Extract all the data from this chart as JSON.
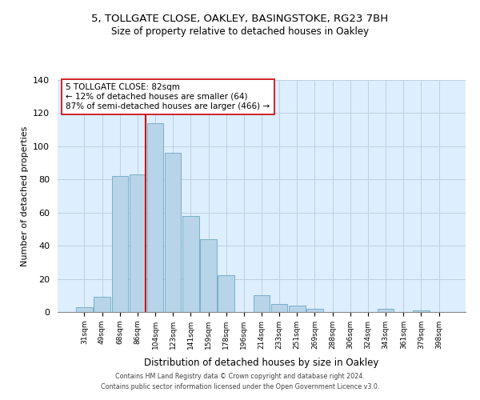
{
  "title1": "5, TOLLGATE CLOSE, OAKLEY, BASINGSTOKE, RG23 7BH",
  "title2": "Size of property relative to detached houses in Oakley",
  "xlabel": "Distribution of detached houses by size in Oakley",
  "ylabel": "Number of detached properties",
  "bar_labels": [
    "31sqm",
    "49sqm",
    "68sqm",
    "86sqm",
    "104sqm",
    "123sqm",
    "141sqm",
    "159sqm",
    "178sqm",
    "196sqm",
    "214sqm",
    "233sqm",
    "251sqm",
    "269sqm",
    "288sqm",
    "306sqm",
    "324sqm",
    "343sqm",
    "361sqm",
    "379sqm",
    "398sqm"
  ],
  "bar_values": [
    3,
    9,
    82,
    83,
    114,
    96,
    58,
    44,
    22,
    0,
    10,
    5,
    4,
    2,
    0,
    0,
    0,
    2,
    0,
    1,
    0
  ],
  "bar_color": "#b8d4e8",
  "bar_edge_color": "#7aafc8",
  "annotation_line1": "5 TOLLGATE CLOSE: 82sqm",
  "annotation_line2": "← 12% of detached houses are smaller (64)",
  "annotation_line3": "87% of semi-detached houses are larger (466) →",
  "annotation_box_color": "#ffffff",
  "annotation_box_edge": "#cc0000",
  "vline_color": "#cc0000",
  "vline_bar_index": 3,
  "ylim": [
    0,
    140
  ],
  "yticks": [
    0,
    20,
    40,
    60,
    80,
    100,
    120,
    140
  ],
  "footer1": "Contains HM Land Registry data © Crown copyright and database right 2024.",
  "footer2": "Contains public sector information licensed under the Open Government Licence v3.0.",
  "bg_color": "#ddeeff",
  "grid_color": "#c0d0e0"
}
